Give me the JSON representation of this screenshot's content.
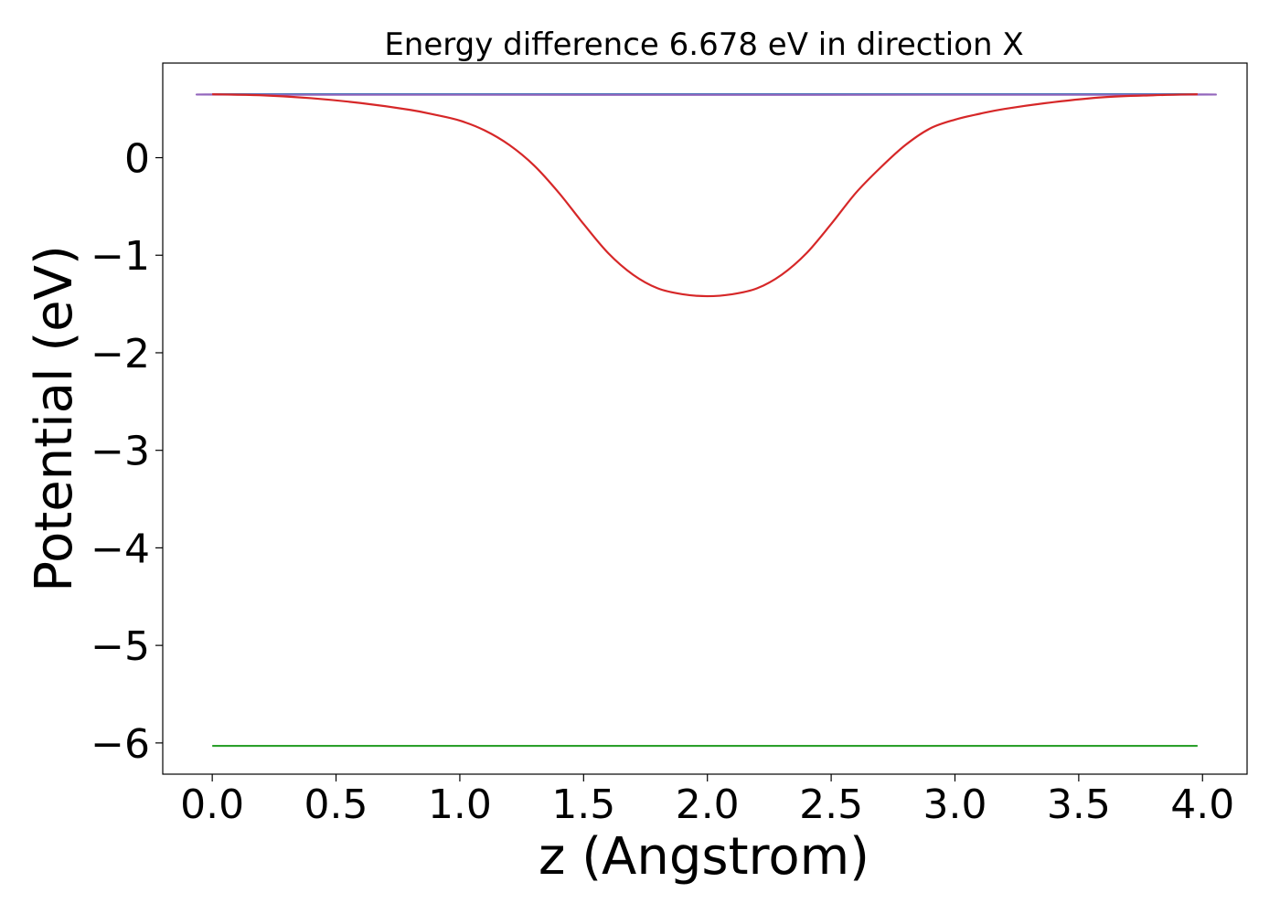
{
  "chart_data": {
    "type": "line",
    "title": "Energy difference 6.678 eV in direction X",
    "xlabel": "z (Angstrom)",
    "ylabel": "Potential (eV)",
    "xlim": [
      -0.2,
      4.18
    ],
    "ylim": [
      -6.32,
      0.97
    ],
    "x_ticks": [
      0.0,
      0.5,
      1.0,
      1.5,
      2.0,
      2.5,
      3.0,
      3.5,
      4.0
    ],
    "x_tick_labels": [
      "0.0",
      "0.5",
      "1.0",
      "1.5",
      "2.0",
      "2.5",
      "3.0",
      "3.5",
      "4.0"
    ],
    "y_ticks": [
      0,
      -1,
      -2,
      -3,
      -4,
      -5,
      -6
    ],
    "y_tick_labels": [
      "0",
      "−1",
      "−2",
      "−3",
      "−4",
      "−5",
      "−6"
    ],
    "grid": false,
    "series": [
      {
        "color": "#1f77b4",
        "x": [
          0.0,
          3.98
        ],
        "y": [
          0.65,
          0.65
        ]
      },
      {
        "color": "#2ca02c",
        "x": [
          0.0,
          3.98
        ],
        "y": [
          -6.03,
          -6.03
        ]
      },
      {
        "color": "#9467bd",
        "x": [
          0.0,
          0.3,
          3.7,
          3.98
        ],
        "y": [
          0.65,
          0.645,
          0.645,
          0.65
        ]
      },
      {
        "color": "#d62728",
        "x": [
          0.0,
          0.2,
          0.4,
          0.6,
          0.8,
          0.9,
          1.0,
          1.1,
          1.2,
          1.3,
          1.4,
          1.5,
          1.6,
          1.7,
          1.8,
          1.9,
          2.0,
          2.1,
          2.2,
          2.3,
          2.4,
          2.5,
          2.6,
          2.7,
          2.8,
          2.9,
          3.0,
          3.1,
          3.2,
          3.4,
          3.6,
          3.8,
          3.98
        ],
        "y": [
          0.65,
          0.64,
          0.61,
          0.56,
          0.49,
          0.44,
          0.38,
          0.28,
          0.13,
          -0.08,
          -0.36,
          -0.68,
          -0.98,
          -1.2,
          -1.34,
          -1.4,
          -1.42,
          -1.4,
          -1.34,
          -1.2,
          -0.98,
          -0.68,
          -0.36,
          -0.1,
          0.13,
          0.3,
          0.39,
          0.45,
          0.5,
          0.57,
          0.62,
          0.64,
          0.65
        ]
      }
    ]
  }
}
